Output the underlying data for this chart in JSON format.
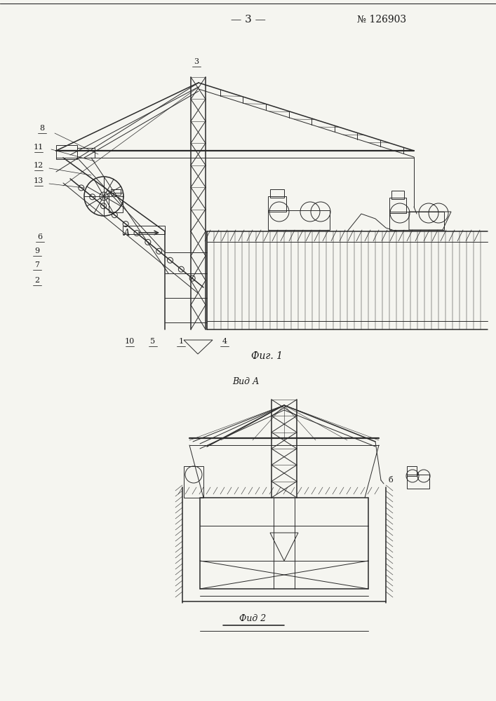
{
  "background_color": "#f5f5f0",
  "line_color": "#2a2a2a",
  "label_color": "#1a1a1a",
  "page_num_text": "— 3 —",
  "patent_num_text": "№ 126903",
  "fig1_caption": "Фиг. 1",
  "fig2_caption": "Фид 2",
  "view_label": "Вид А"
}
